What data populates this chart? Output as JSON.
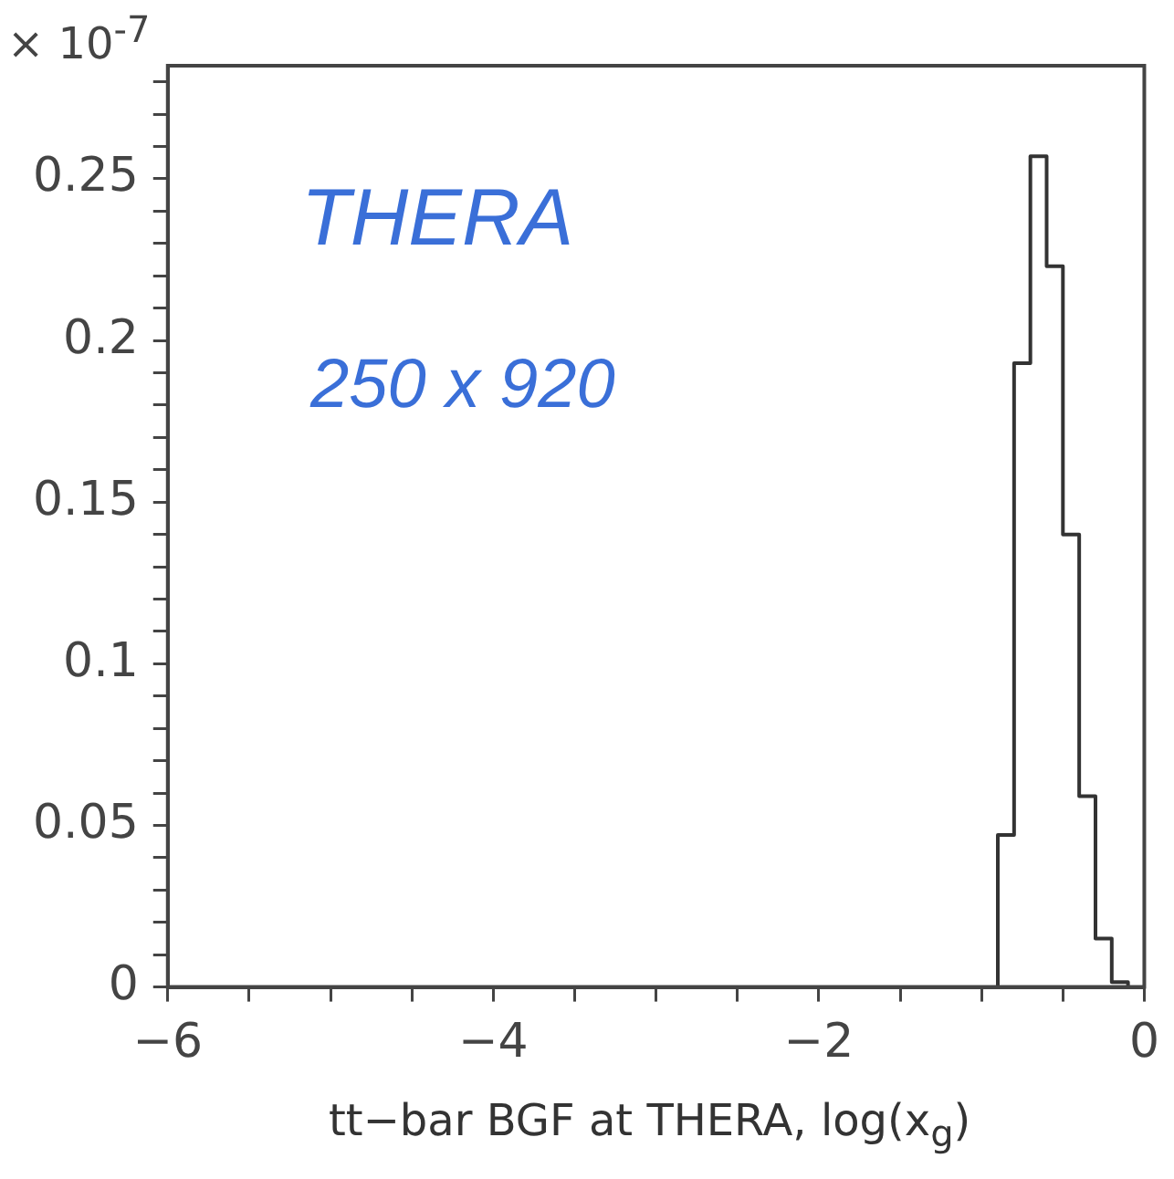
{
  "chart_data": {
    "type": "histogram",
    "xlabel": "tt−bar BGF at THERA,   log(x$_{g}$)",
    "annotations": [
      "× 10$^{-7}$",
      "THERA",
      "250 x 920"
    ],
    "bins": [
      -0.9,
      -0.8,
      -0.7,
      -0.6,
      -0.5,
      -0.4,
      -0.3,
      -0.2,
      -0.1
    ],
    "values": [
      0.047,
      0.193,
      0.257,
      0.223,
      0.14,
      0.059,
      0.015,
      0.0015
    ],
    "color": "#333333",
    "xlim": [
      -6,
      0
    ],
    "xticks": [
      -6,
      {
        "value": -5.5,
        "label": null
      },
      {
        "value": -5,
        "label": null
      },
      {
        "value": -4.5,
        "label": null
      },
      -4,
      {
        "value": -3.5,
        "label": null
      },
      {
        "value": -3,
        "label": null
      },
      {
        "value": -2.5,
        "label": null
      },
      -2,
      {
        "value": -1.5,
        "label": null
      },
      {
        "value": -1,
        "label": null
      },
      {
        "value": -0.5,
        "label": null
      },
      0
    ],
    "ylim": [
      0,
      0.285
    ],
    "yticks": [
      0,
      {
        "value": 0.01,
        "label": null
      },
      {
        "value": 0.02,
        "label": null
      },
      {
        "value": 0.03,
        "label": null
      },
      {
        "value": 0.04,
        "label": null
      },
      0.05,
      {
        "value": 0.06,
        "label": null
      },
      {
        "value": 0.07,
        "label": null
      },
      {
        "value": 0.08,
        "label": null
      },
      {
        "value": 0.09,
        "label": null
      },
      0.1,
      {
        "value": 0.11,
        "label": null
      },
      {
        "value": 0.12,
        "label": null
      },
      {
        "value": 0.13,
        "label": null
      },
      {
        "value": 0.14,
        "label": null
      },
      0.15,
      {
        "value": 0.16,
        "label": null
      },
      {
        "value": 0.17,
        "label": null
      },
      {
        "value": 0.18,
        "label": null
      },
      {
        "value": 0.19,
        "label": null
      },
      0.2,
      {
        "value": 0.21,
        "label": null
      },
      {
        "value": 0.22,
        "label": null
      },
      {
        "value": 0.23,
        "label": null
      },
      {
        "value": 0.24,
        "label": null
      },
      0.25,
      {
        "value": 0.26,
        "label": null
      },
      {
        "value": 0.27,
        "label": null
      },
      {
        "value": 0.28,
        "label": null
      }
    ],
    "grid": false
  }
}
